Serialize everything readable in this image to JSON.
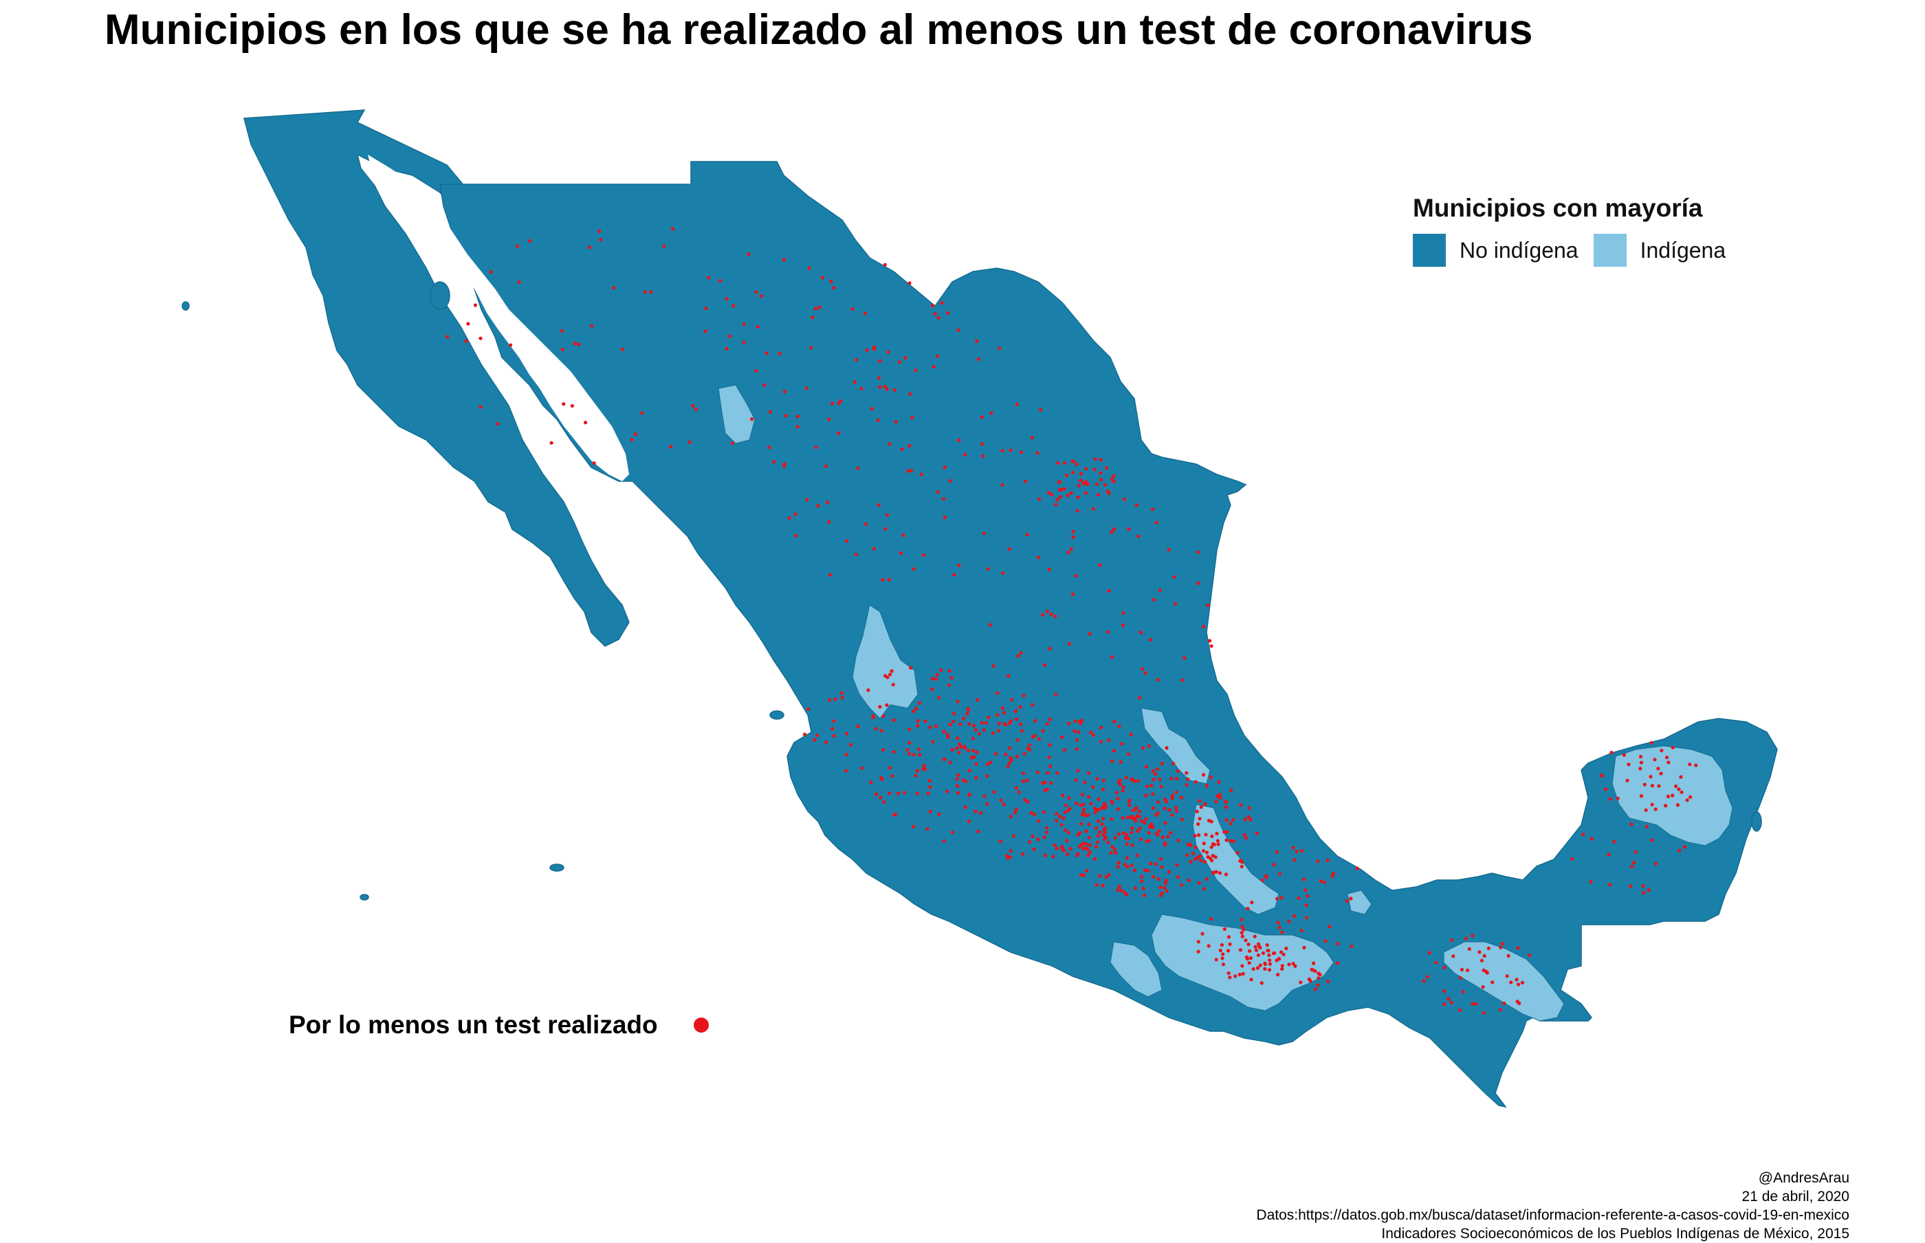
{
  "title": "Municipios en los que se ha realizado al menos un test de coronavirus",
  "legend": {
    "title": "Municipios con mayoría",
    "items": [
      {
        "label": "No indígena",
        "color": "#1a80aa"
      },
      {
        "label": "Indígena",
        "color": "#83c5e2"
      }
    ]
  },
  "points_legend": {
    "label": "Por lo menos un test realizado",
    "color": "#e8141b"
  },
  "caption": {
    "author": "@AndresArau",
    "date": "21 de abril, 2020",
    "source_data": "Datos:https://datos.gob.mx/busca/dataset/informacion-referente-a-casos-covid-19-en-mexico",
    "source_indicators": "Indicadores Socioeconómicos de los Pueblos Indígenas de México, 2015"
  },
  "map": {
    "country": "México",
    "land_color": "#1a80aa",
    "indigenous_color": "#83c5e2",
    "border_color": "#156c90",
    "test_point_color": "#e8141b"
  }
}
